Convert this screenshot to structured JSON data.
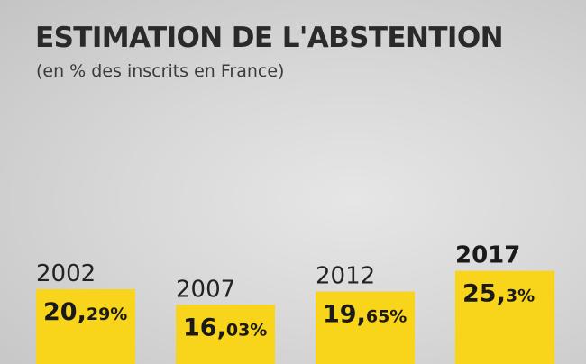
{
  "title": "ESTIMATION DE L'ABSTENTION",
  "subtitle": "(en % des inscrits en France)",
  "colors": {
    "bar": "#f8d41a",
    "text": "#222222"
  },
  "chart_data": {
    "type": "bar",
    "title": "ESTIMATION DE L'ABSTENTION",
    "subtitle": "(en % des inscrits en France)",
    "categories": [
      "2002",
      "2007",
      "2012",
      "2017"
    ],
    "values": [
      20.29,
      16.03,
      19.65,
      25.3
    ],
    "labels": [
      {
        "int": "20,",
        "dec": "29%"
      },
      {
        "int": "16,",
        "dec": "03%"
      },
      {
        "int": "19,",
        "dec": "65%"
      },
      {
        "int": "25,",
        "dec": "3%"
      }
    ],
    "highlight": "2017",
    "xlabel": "",
    "ylabel": "",
    "grid": false
  }
}
